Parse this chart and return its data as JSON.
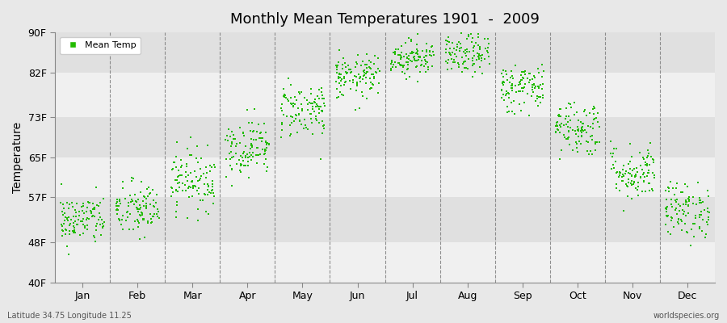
{
  "title": "Monthly Mean Temperatures 1901  -  2009",
  "ylabel": "Temperature",
  "bottom_left": "Latitude 34.75 Longitude 11.25",
  "bottom_right": "worldspecies.org",
  "legend_label": "Mean Temp",
  "marker_color": "#22bb00",
  "bg_color": "#e8e8e8",
  "band_color_light": "#f0f0f0",
  "band_color_dark": "#e0e0e0",
  "yticks": [
    40,
    48,
    57,
    65,
    73,
    82,
    90
  ],
  "ytick_labels": [
    "40F",
    "48F",
    "57F",
    "65F",
    "73F",
    "82F",
    "90F"
  ],
  "months": [
    "Jan",
    "Feb",
    "Mar",
    "Apr",
    "May",
    "Jun",
    "Jul",
    "Aug",
    "Sep",
    "Oct",
    "Nov",
    "Dec"
  ],
  "month_mean_temps_F": [
    52.5,
    54.5,
    60.5,
    67.0,
    74.5,
    81.0,
    85.0,
    85.5,
    79.0,
    71.0,
    62.0,
    54.5
  ],
  "month_std_F": [
    2.5,
    2.8,
    3.0,
    2.8,
    2.8,
    2.2,
    1.8,
    2.0,
    2.5,
    2.8,
    2.8,
    2.8
  ],
  "month_trend_F": [
    0.8,
    0.8,
    0.8,
    0.8,
    0.8,
    0.8,
    0.8,
    0.8,
    0.8,
    0.8,
    0.8,
    0.8
  ],
  "n_years": 109,
  "ylim": [
    40,
    90
  ],
  "xlim": [
    0,
    12
  ]
}
